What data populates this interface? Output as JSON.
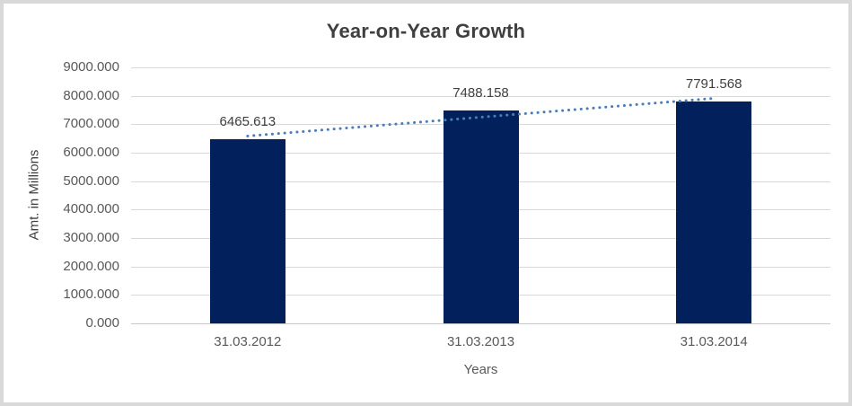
{
  "chart_data": {
    "type": "bar",
    "title": "Year-on-Year Growth",
    "xlabel": "Years",
    "ylabel": "Amt. in Millions",
    "categories": [
      "31.03.2012",
      "31.03.2013",
      "31.03.2014"
    ],
    "values": [
      6465.613,
      7488.158,
      7791.568
    ],
    "data_labels": [
      "6465.613",
      "7488.158",
      "7791.568"
    ],
    "ylim": [
      0,
      9000
    ],
    "ytick_step": 1000,
    "ytick_decimals": 3,
    "grid": true,
    "legend": false,
    "trendline": {
      "type": "linear",
      "style": "dotted"
    },
    "colors": {
      "bar": "#02215c",
      "trendline": "#4a7ebb",
      "gridline": "#d9d9d9",
      "axis_line": "#c9c9c9",
      "title_text": "#3f3f3f",
      "tick_text": "#595959",
      "label_text": "#404040",
      "frame_border": "#d9d9d9"
    }
  }
}
